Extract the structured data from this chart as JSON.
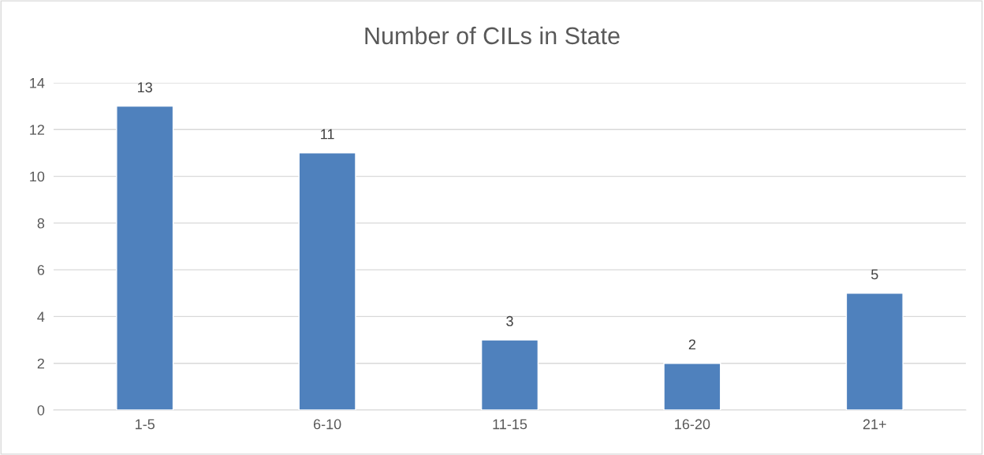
{
  "chart_data": {
    "type": "bar",
    "title": "Number of CILs in State",
    "categories": [
      "1-5",
      "6-10",
      "11-15",
      "16-20",
      "21+"
    ],
    "values": [
      13,
      11,
      3,
      2,
      5
    ],
    "color": "#4f81bd",
    "ylim": [
      0,
      14
    ],
    "yticks": [
      0,
      2,
      4,
      6,
      8,
      10,
      12,
      14
    ],
    "grid": "y",
    "data_labels": true
  }
}
